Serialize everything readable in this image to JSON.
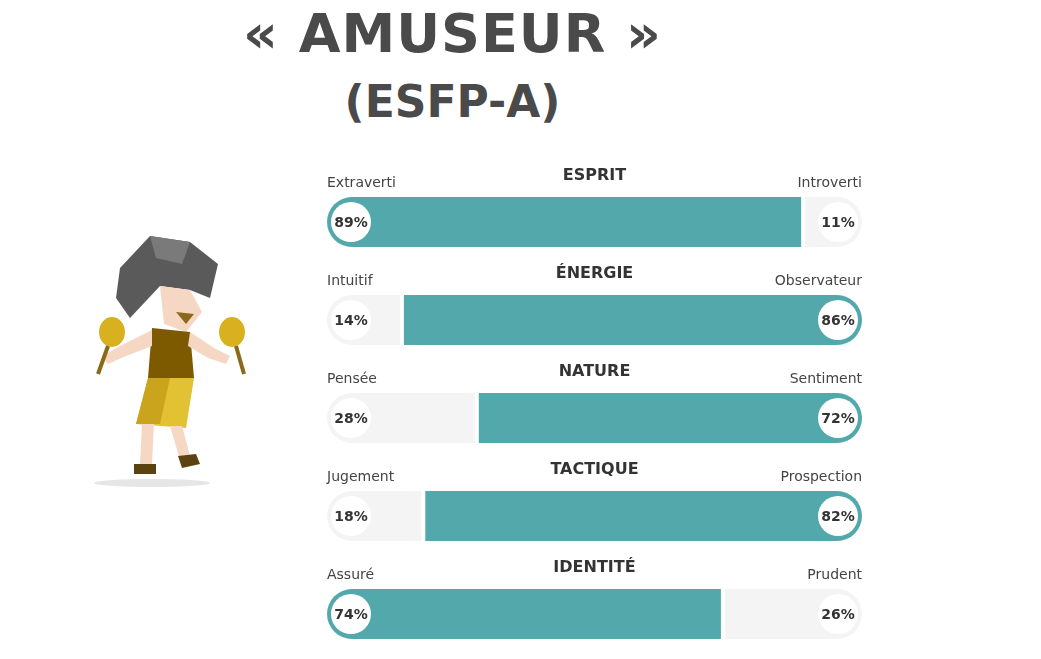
{
  "chart_data": {
    "type": "bar",
    "title": "« AMUSEUR »",
    "subtitle": "(ESFP-A)",
    "orientation": "horizontal",
    "stacked": true,
    "data_labels": true,
    "tick_labels": false,
    "grid": false,
    "categories": [
      "ESPRIT",
      "ÉNERGIE",
      "NATURE",
      "TACTIQUE",
      "IDENTITÉ"
    ],
    "xlim": [
      0,
      100
    ],
    "series": [
      {
        "labels": [
          "Extraverti",
          "Intuitif",
          "Pensée",
          "Jugement",
          "Assuré"
        ],
        "values": [
          89,
          14,
          28,
          18,
          74
        ],
        "value_labels": [
          "89%",
          "14%",
          "28%",
          "18%",
          "74%"
        ],
        "colors": [
          "#52a8ab",
          "#f4f4f4",
          "#f4f4f4",
          "#f4f4f4",
          "#52a8ab"
        ]
      },
      {
        "labels": [
          "Introverti",
          "Observateur",
          "Sentiment",
          "Prospection",
          "Prudent"
        ],
        "values": [
          11,
          86,
          72,
          82,
          26
        ],
        "value_labels": [
          "11%",
          "86%",
          "72%",
          "82%",
          "26%"
        ],
        "colors": [
          "#f4f4f4",
          "#52a8ab",
          "#52a8ab",
          "#52a8ab",
          "#f4f4f4"
        ]
      }
    ]
  }
}
